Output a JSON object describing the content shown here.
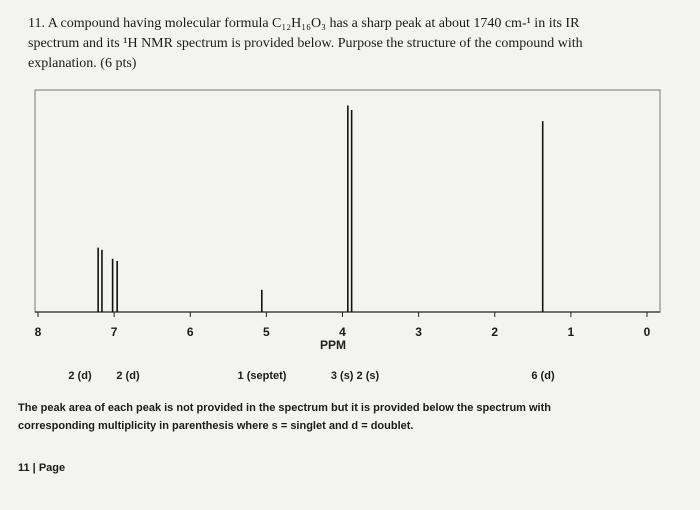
{
  "question": {
    "lines": [
      "11.  A compound having molecular formula C₁₂H₁₆O₃ has a sharp peak at about 1740 cm-¹ in its IR",
      "spectrum and its ¹H NMR spectrum is provided below. Purpose the structure of the compound with",
      "explanation. (6 pts)"
    ]
  },
  "spectrum": {
    "xlabel": "PPM",
    "xlim": [
      8,
      0
    ],
    "xticks": [
      8,
      7,
      6,
      5,
      4,
      3,
      2,
      1,
      0
    ],
    "ylim": [
      0,
      100
    ],
    "color": "#111111",
    "peaks": [
      {
        "ppm": 7.21,
        "height": 29
      },
      {
        "ppm": 7.16,
        "height": 28
      },
      {
        "ppm": 7.02,
        "height": 24
      },
      {
        "ppm": 6.96,
        "height": 23
      },
      {
        "ppm": 5.06,
        "height": 10
      },
      {
        "ppm": 3.93,
        "height": 93
      },
      {
        "ppm": 3.88,
        "height": 91
      },
      {
        "ppm": 1.37,
        "height": 86
      }
    ]
  },
  "multiplicities": [
    "2 (d)",
    "2 (d)",
    "1 (septet)",
    "3 (s) 2 (s)",
    "6 (d)"
  ],
  "note": {
    "lines": [
      "The peak area of each peak is not provided in the spectrum but it is provided below the spectrum with",
      "corresponding multiplicity in parenthesis where s = singlet and d = doublet."
    ]
  },
  "footer": "11 | Page"
}
